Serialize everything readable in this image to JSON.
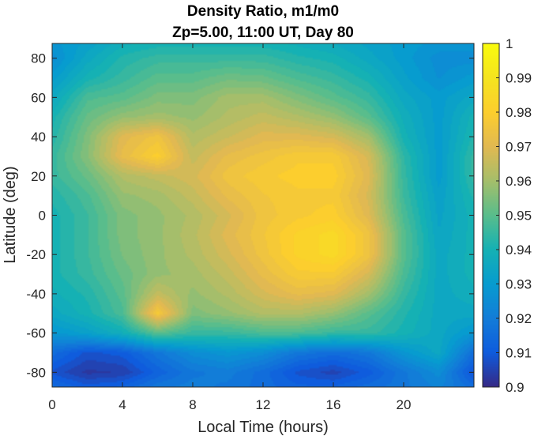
{
  "chart_data": {
    "type": "heatmap",
    "title": "Density Ratio, m1/m0",
    "subtitle": "Zp=5.00, 11:00 UT, Day 80",
    "xlabel": "Local Time (hours)",
    "ylabel": "Latitude (deg)",
    "xlim": [
      0,
      24
    ],
    "ylim": [
      -87.5,
      87.5
    ],
    "x_ticks": [
      0,
      4,
      8,
      12,
      16,
      20
    ],
    "y_ticks": [
      -80,
      -60,
      -40,
      -20,
      0,
      20,
      40,
      60,
      80
    ],
    "colorbar": {
      "min": 0.9,
      "max": 1.0,
      "ticks": [
        0.9,
        0.91,
        0.92,
        0.93,
        0.94,
        0.95,
        0.96,
        0.97,
        0.98,
        0.99,
        1
      ],
      "colormap": "parula"
    },
    "grid": false,
    "x": [
      0,
      2,
      4,
      6,
      8,
      10,
      12,
      14,
      16,
      18,
      20,
      22,
      24
    ],
    "y": [
      -87.5,
      -80,
      -70,
      -60,
      -50,
      -40,
      -30,
      -20,
      -10,
      0,
      10,
      20,
      30,
      40,
      50,
      60,
      70,
      80,
      87.5
    ],
    "z": [
      [
        0.915,
        0.91,
        0.912,
        0.918,
        0.92,
        0.918,
        0.915,
        0.912,
        0.912,
        0.915,
        0.918,
        0.922,
        0.915
      ],
      [
        0.908,
        0.903,
        0.904,
        0.912,
        0.918,
        0.92,
        0.915,
        0.908,
        0.905,
        0.91,
        0.918,
        0.925,
        0.908
      ],
      [
        0.915,
        0.908,
        0.91,
        0.918,
        0.925,
        0.928,
        0.925,
        0.918,
        0.915,
        0.918,
        0.928,
        0.935,
        0.915
      ],
      [
        0.928,
        0.932,
        0.938,
        0.95,
        0.945,
        0.945,
        0.948,
        0.948,
        0.945,
        0.945,
        0.94,
        0.935,
        0.928
      ],
      [
        0.935,
        0.94,
        0.948,
        0.978,
        0.955,
        0.958,
        0.962,
        0.962,
        0.958,
        0.95,
        0.942,
        0.935,
        0.935
      ],
      [
        0.938,
        0.942,
        0.95,
        0.965,
        0.958,
        0.962,
        0.968,
        0.972,
        0.97,
        0.96,
        0.945,
        0.935,
        0.938
      ],
      [
        0.94,
        0.945,
        0.952,
        0.958,
        0.96,
        0.965,
        0.972,
        0.978,
        0.978,
        0.968,
        0.948,
        0.935,
        0.94
      ],
      [
        0.94,
        0.946,
        0.954,
        0.958,
        0.962,
        0.968,
        0.975,
        0.982,
        0.985,
        0.975,
        0.95,
        0.935,
        0.94
      ],
      [
        0.94,
        0.946,
        0.955,
        0.958,
        0.963,
        0.97,
        0.976,
        0.982,
        0.985,
        0.975,
        0.95,
        0.934,
        0.94
      ],
      [
        0.94,
        0.946,
        0.955,
        0.958,
        0.962,
        0.968,
        0.975,
        0.978,
        0.98,
        0.97,
        0.948,
        0.933,
        0.94
      ],
      [
        0.942,
        0.948,
        0.958,
        0.96,
        0.965,
        0.972,
        0.976,
        0.978,
        0.978,
        0.968,
        0.946,
        0.932,
        0.942
      ],
      [
        0.945,
        0.952,
        0.962,
        0.965,
        0.968,
        0.975,
        0.978,
        0.98,
        0.98,
        0.97,
        0.945,
        0.93,
        0.945
      ],
      [
        0.945,
        0.956,
        0.972,
        0.98,
        0.965,
        0.972,
        0.975,
        0.978,
        0.978,
        0.968,
        0.944,
        0.93,
        0.945
      ],
      [
        0.942,
        0.955,
        0.97,
        0.975,
        0.962,
        0.966,
        0.97,
        0.97,
        0.968,
        0.96,
        0.94,
        0.93,
        0.942
      ],
      [
        0.94,
        0.952,
        0.958,
        0.96,
        0.958,
        0.962,
        0.965,
        0.962,
        0.958,
        0.95,
        0.938,
        0.93,
        0.94
      ],
      [
        0.935,
        0.948,
        0.95,
        0.955,
        0.955,
        0.96,
        0.96,
        0.955,
        0.95,
        0.945,
        0.935,
        0.93,
        0.935
      ],
      [
        0.93,
        0.94,
        0.945,
        0.95,
        0.95,
        0.953,
        0.952,
        0.948,
        0.945,
        0.94,
        0.932,
        0.926,
        0.93
      ],
      [
        0.925,
        0.935,
        0.942,
        0.945,
        0.945,
        0.945,
        0.945,
        0.942,
        0.94,
        0.935,
        0.93,
        0.925,
        0.925
      ],
      [
        0.928,
        0.932,
        0.938,
        0.94,
        0.94,
        0.94,
        0.94,
        0.938,
        0.936,
        0.933,
        0.93,
        0.928,
        0.928
      ]
    ]
  }
}
